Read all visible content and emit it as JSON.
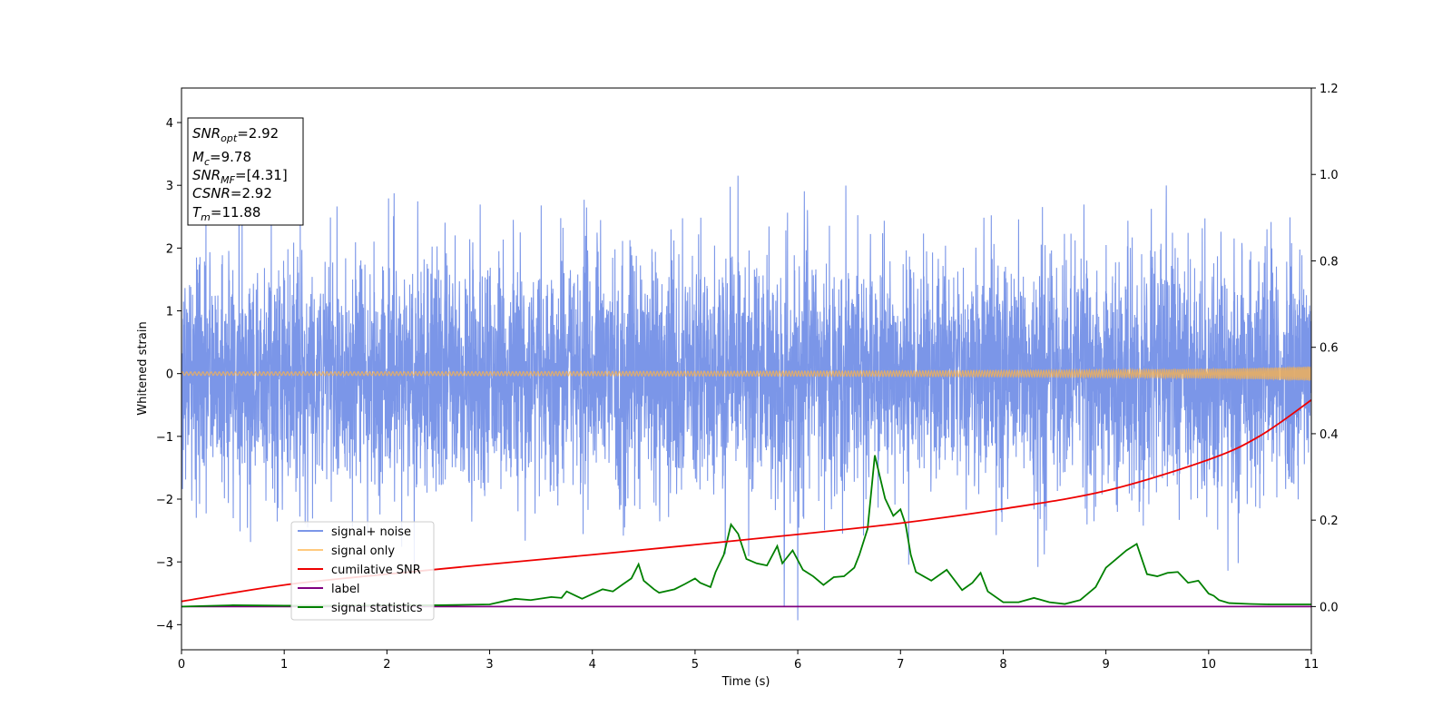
{
  "chart_data": {
    "type": "line",
    "xlabel": "Time (s)",
    "ylabel": "Whitened strain",
    "xlim": [
      0,
      11
    ],
    "ylim": [
      -4.4,
      4.55
    ],
    "y2lim": [
      -0.1,
      1.2
    ],
    "x_ticks": [
      "0",
      "1",
      "2",
      "3",
      "4",
      "5",
      "6",
      "7",
      "8",
      "9",
      "10",
      "11"
    ],
    "y_ticks": [
      "4",
      "3",
      "2",
      "1",
      "0",
      "−1",
      "−2",
      "−3",
      "−4"
    ],
    "y2_ticks": [
      "1.2",
      "1.0",
      "0.8",
      "0.6",
      "0.4",
      "0.2",
      "0.0"
    ],
    "grid": false,
    "legend_position": "lower-left",
    "info_box": {
      "snr_opt": {
        "sym": "SNR",
        "sub": "opt",
        "value": "=2.92"
      },
      "mc": {
        "sym": "M",
        "sub": "c",
        "value": "=9.78"
      },
      "snr_mf": {
        "sym": "SNR",
        "sub": "MF",
        "value": "=[4.31]"
      },
      "csnr": {
        "sym": "CSNR",
        "value": "=2.92"
      },
      "tm": {
        "sym": "T",
        "sub": "m",
        "value": "=11.88"
      }
    },
    "series": [
      {
        "name": "signal+ noise",
        "color": "#7b96e8",
        "axis": "left",
        "kind": "gaussian-noise",
        "std": 0.95
      },
      {
        "name": "signal only",
        "color": "#ffb347",
        "axis": "left",
        "kind": "chirp"
      },
      {
        "name": "cumilative SNR",
        "color": "#ee0000",
        "axis": "right",
        "x": [
          0,
          1,
          2,
          3,
          4,
          5,
          6,
          7,
          8,
          9,
          10,
          10.5,
          11
        ],
        "y": [
          0.012,
          0.05,
          0.075,
          0.098,
          0.12,
          0.143,
          0.167,
          0.193,
          0.226,
          0.268,
          0.34,
          0.395,
          0.478
        ]
      },
      {
        "name": "label",
        "color": "#800080",
        "axis": "right",
        "x": [
          0,
          11
        ],
        "y": [
          0,
          0
        ]
      },
      {
        "name": "signal statistics",
        "color": "#008000",
        "axis": "right",
        "x": [
          0,
          0.5,
          1,
          1.5,
          2,
          2.5,
          3,
          3.15,
          3.25,
          3.4,
          3.6,
          3.7,
          3.75,
          3.9,
          4.1,
          4.2,
          4.3,
          4.38,
          4.45,
          4.5,
          4.6,
          4.65,
          4.8,
          4.9,
          5.0,
          5.05,
          5.15,
          5.2,
          5.28,
          5.35,
          5.42,
          5.5,
          5.6,
          5.7,
          5.8,
          5.85,
          5.95,
          6.05,
          6.15,
          6.25,
          6.35,
          6.45,
          6.55,
          6.6,
          6.68,
          6.75,
          6.85,
          6.93,
          7.0,
          7.05,
          7.1,
          7.15,
          7.3,
          7.45,
          7.6,
          7.7,
          7.78,
          7.85,
          8.0,
          8.15,
          8.3,
          8.45,
          8.6,
          8.75,
          8.9,
          9.0,
          9.1,
          9.2,
          9.3,
          9.4,
          9.5,
          9.6,
          9.7,
          9.8,
          9.9,
          10.0,
          10.05,
          10.1,
          10.2,
          10.4,
          10.6,
          11
        ],
        "y": [
          0.0,
          0.003,
          0.002,
          0.002,
          0.003,
          0.003,
          0.005,
          0.013,
          0.018,
          0.015,
          0.022,
          0.02,
          0.035,
          0.018,
          0.04,
          0.035,
          0.052,
          0.065,
          0.098,
          0.06,
          0.04,
          0.032,
          0.04,
          0.052,
          0.065,
          0.055,
          0.045,
          0.08,
          0.12,
          0.19,
          0.168,
          0.11,
          0.1,
          0.095,
          0.14,
          0.1,
          0.13,
          0.085,
          0.07,
          0.05,
          0.068,
          0.07,
          0.09,
          0.12,
          0.18,
          0.35,
          0.25,
          0.21,
          0.225,
          0.19,
          0.12,
          0.08,
          0.06,
          0.085,
          0.038,
          0.055,
          0.078,
          0.035,
          0.01,
          0.01,
          0.02,
          0.01,
          0.006,
          0.015,
          0.045,
          0.09,
          0.11,
          0.13,
          0.145,
          0.075,
          0.07,
          0.078,
          0.08,
          0.055,
          0.06,
          0.03,
          0.025,
          0.015,
          0.008,
          0.006,
          0.005,
          0.005
        ]
      }
    ]
  }
}
